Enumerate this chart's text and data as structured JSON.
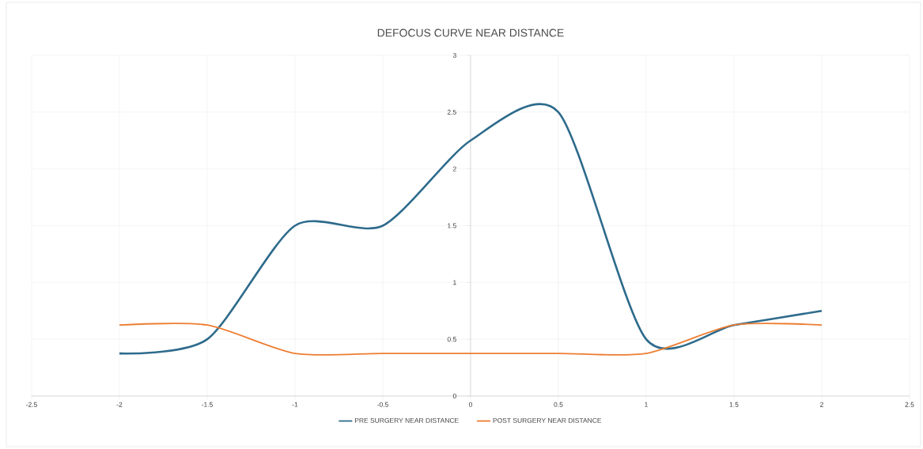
{
  "chart_data": {
    "type": "line",
    "title": "DEFOCUS CURVE NEAR DISTANCE",
    "x": [
      -2,
      -1.5,
      -1,
      -0.5,
      0,
      0.5,
      1,
      1.5,
      2
    ],
    "series": [
      {
        "name": "PRE SURGERY NEAR DISTANCE",
        "color": "#2e6b8c",
        "values": [
          0.375,
          0.5,
          1.5,
          1.5,
          2.25,
          2.5,
          0.5,
          0.625,
          0.75
        ]
      },
      {
        "name": "POST SURGERY NEAR DISTANCE",
        "color": "#ed7d31",
        "values": [
          0.625,
          0.625,
          0.375,
          0.375,
          0.375,
          0.375,
          0.375,
          0.625,
          0.625
        ]
      }
    ],
    "xlim": [
      -2.5,
      2.5
    ],
    "ylim": [
      0,
      3
    ],
    "xticks": [
      -2.5,
      -2,
      -1.5,
      -1,
      -0.5,
      0,
      0.5,
      1,
      1.5,
      2,
      2.5
    ],
    "yticks": [
      0,
      0.5,
      1,
      1.5,
      2,
      2.5,
      3
    ],
    "grid": true,
    "legend": "bottom",
    "marker": "none"
  }
}
